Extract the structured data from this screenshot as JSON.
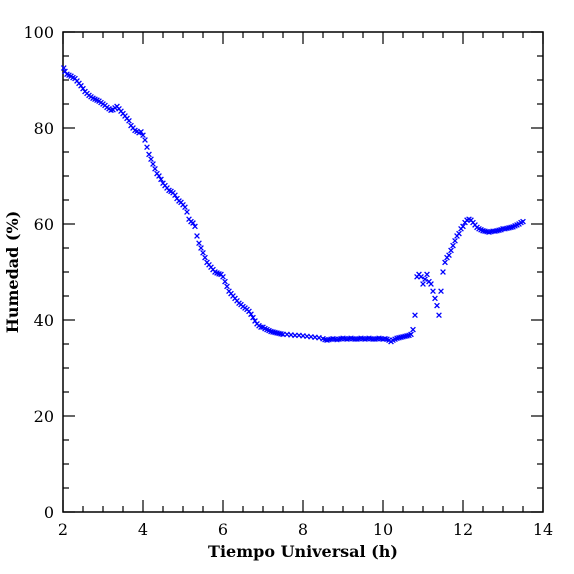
{
  "chart_data": {
    "type": "scatter",
    "title": "",
    "xlabel": "Tiempo Universal (h)",
    "ylabel": "Humedad (%)",
    "xlim": [
      2,
      14
    ],
    "ylim": [
      0,
      100
    ],
    "x_ticks": [
      "2",
      "4",
      "6",
      "8",
      "10",
      "12",
      "14"
    ],
    "y_ticks": [
      "0",
      "20",
      "40",
      "60",
      "80",
      "100"
    ],
    "grid": false,
    "marker": "x",
    "marker_color": "#0000ff",
    "series": [
      {
        "points": [
          [
            2.02,
            92.5
          ],
          [
            2.05,
            91.8
          ],
          [
            2.1,
            91.2
          ],
          [
            2.15,
            91.0
          ],
          [
            2.2,
            90.8
          ],
          [
            2.25,
            90.5
          ],
          [
            2.3,
            90.3
          ],
          [
            2.35,
            89.8
          ],
          [
            2.4,
            89.3
          ],
          [
            2.45,
            88.8
          ],
          [
            2.5,
            88.2
          ],
          [
            2.55,
            87.6
          ],
          [
            2.6,
            87.2
          ],
          [
            2.65,
            86.8
          ],
          [
            2.7,
            86.5
          ],
          [
            2.75,
            86.2
          ],
          [
            2.8,
            86.0
          ],
          [
            2.85,
            85.8
          ],
          [
            2.9,
            85.6
          ],
          [
            2.95,
            85.3
          ],
          [
            3.0,
            85.0
          ],
          [
            3.05,
            84.7
          ],
          [
            3.1,
            84.3
          ],
          [
            3.15,
            84.0
          ],
          [
            3.2,
            83.7
          ],
          [
            3.25,
            83.8
          ],
          [
            3.3,
            84.2
          ],
          [
            3.35,
            84.5
          ],
          [
            3.4,
            84.0
          ],
          [
            3.45,
            83.5
          ],
          [
            3.5,
            83.0
          ],
          [
            3.55,
            82.5
          ],
          [
            3.6,
            82.0
          ],
          [
            3.65,
            81.5
          ],
          [
            3.7,
            80.5
          ],
          [
            3.75,
            80.0
          ],
          [
            3.8,
            79.5
          ],
          [
            3.85,
            79.3
          ],
          [
            3.9,
            79.0
          ],
          [
            3.95,
            79.2
          ],
          [
            4.0,
            78.5
          ],
          [
            4.05,
            77.5
          ],
          [
            4.1,
            76.0
          ],
          [
            4.15,
            74.5
          ],
          [
            4.2,
            73.5
          ],
          [
            4.25,
            72.5
          ],
          [
            4.3,
            71.5
          ],
          [
            4.35,
            70.5
          ],
          [
            4.4,
            70.0
          ],
          [
            4.45,
            69.3
          ],
          [
            4.5,
            68.5
          ],
          [
            4.55,
            68.0
          ],
          [
            4.6,
            67.5
          ],
          [
            4.65,
            67.0
          ],
          [
            4.7,
            66.8
          ],
          [
            4.75,
            66.5
          ],
          [
            4.8,
            66.0
          ],
          [
            4.85,
            65.3
          ],
          [
            4.9,
            64.8
          ],
          [
            4.95,
            64.5
          ],
          [
            5.0,
            64.0
          ],
          [
            5.05,
            63.5
          ],
          [
            5.1,
            62.5
          ],
          [
            5.15,
            61.0
          ],
          [
            5.2,
            60.5
          ],
          [
            5.25,
            60.2
          ],
          [
            5.3,
            59.5
          ],
          [
            5.35,
            57.5
          ],
          [
            5.4,
            56.0
          ],
          [
            5.45,
            55.0
          ],
          [
            5.5,
            54.0
          ],
          [
            5.55,
            53.0
          ],
          [
            5.6,
            52.0
          ],
          [
            5.65,
            51.5
          ],
          [
            5.7,
            51.0
          ],
          [
            5.75,
            50.5
          ],
          [
            5.8,
            50.0
          ],
          [
            5.85,
            49.8
          ],
          [
            5.9,
            49.6
          ],
          [
            5.95,
            49.5
          ],
          [
            6.0,
            49.0
          ],
          [
            6.05,
            48.0
          ],
          [
            6.1,
            47.0
          ],
          [
            6.15,
            46.0
          ],
          [
            6.2,
            45.5
          ],
          [
            6.25,
            45.0
          ],
          [
            6.3,
            44.5
          ],
          [
            6.35,
            44.0
          ],
          [
            6.4,
            43.5
          ],
          [
            6.45,
            43.2
          ],
          [
            6.5,
            42.8
          ],
          [
            6.55,
            42.5
          ],
          [
            6.6,
            42.2
          ],
          [
            6.65,
            41.8
          ],
          [
            6.7,
            41.2
          ],
          [
            6.75,
            40.5
          ],
          [
            6.8,
            39.8
          ],
          [
            6.85,
            39.2
          ],
          [
            6.9,
            38.8
          ],
          [
            6.95,
            38.5
          ],
          [
            7.0,
            38.5
          ],
          [
            7.05,
            38.2
          ],
          [
            7.1,
            38.0
          ],
          [
            7.15,
            37.8
          ],
          [
            7.2,
            37.6
          ],
          [
            7.25,
            37.5
          ],
          [
            7.3,
            37.4
          ],
          [
            7.35,
            37.3
          ],
          [
            7.4,
            37.2
          ],
          [
            7.45,
            37.1
          ],
          [
            7.5,
            37.0
          ],
          [
            7.6,
            37.0
          ],
          [
            7.7,
            36.9
          ],
          [
            7.8,
            36.8
          ],
          [
            7.9,
            36.8
          ],
          [
            8.0,
            36.7
          ],
          [
            8.1,
            36.6
          ],
          [
            8.2,
            36.5
          ],
          [
            8.3,
            36.4
          ],
          [
            8.4,
            36.3
          ],
          [
            8.5,
            36.1
          ],
          [
            8.55,
            35.9
          ],
          [
            8.6,
            35.8
          ],
          [
            8.65,
            35.9
          ],
          [
            8.7,
            36.0
          ],
          [
            8.75,
            36.1
          ],
          [
            8.8,
            36.0
          ],
          [
            8.85,
            35.9
          ],
          [
            8.9,
            36.0
          ],
          [
            8.95,
            36.1
          ],
          [
            9.0,
            36.2
          ],
          [
            9.05,
            36.1
          ],
          [
            9.1,
            36.0
          ],
          [
            9.15,
            36.1
          ],
          [
            9.2,
            36.2
          ],
          [
            9.25,
            36.1
          ],
          [
            9.3,
            36.0
          ],
          [
            9.35,
            36.0
          ],
          [
            9.4,
            36.1
          ],
          [
            9.45,
            36.2
          ],
          [
            9.5,
            36.1
          ],
          [
            9.55,
            36.0
          ],
          [
            9.6,
            36.1
          ],
          [
            9.65,
            36.2
          ],
          [
            9.7,
            36.1
          ],
          [
            9.75,
            36.0
          ],
          [
            9.8,
            36.0
          ],
          [
            9.85,
            36.1
          ],
          [
            9.9,
            36.2
          ],
          [
            9.95,
            36.1
          ],
          [
            10.0,
            36.0
          ],
          [
            10.05,
            36.1
          ],
          [
            10.1,
            36.0
          ],
          [
            10.15,
            35.8
          ],
          [
            10.2,
            35.5
          ],
          [
            10.25,
            35.8
          ],
          [
            10.3,
            36.0
          ],
          [
            10.35,
            36.2
          ],
          [
            10.4,
            36.3
          ],
          [
            10.45,
            36.4
          ],
          [
            10.5,
            36.5
          ],
          [
            10.55,
            36.6
          ],
          [
            10.6,
            36.7
          ],
          [
            10.65,
            36.8
          ],
          [
            10.7,
            37.0
          ],
          [
            10.75,
            38.0
          ],
          [
            10.8,
            41.0
          ],
          [
            10.85,
            49.0
          ],
          [
            10.9,
            49.5
          ],
          [
            10.95,
            49.0
          ],
          [
            11.0,
            47.5
          ],
          [
            11.05,
            48.5
          ],
          [
            11.1,
            49.5
          ],
          [
            11.15,
            48.0
          ],
          [
            11.2,
            47.5
          ],
          [
            11.25,
            46.0
          ],
          [
            11.3,
            44.5
          ],
          [
            11.35,
            43.0
          ],
          [
            11.4,
            41.0
          ],
          [
            11.45,
            46.0
          ],
          [
            11.5,
            50.0
          ],
          [
            11.55,
            52.0
          ],
          [
            11.6,
            53.0
          ],
          [
            11.65,
            53.5
          ],
          [
            11.7,
            54.5
          ],
          [
            11.75,
            55.5
          ],
          [
            11.8,
            56.5
          ],
          [
            11.85,
            57.5
          ],
          [
            11.9,
            58.0
          ],
          [
            11.95,
            59.0
          ],
          [
            12.0,
            59.5
          ],
          [
            12.05,
            60.3
          ],
          [
            12.1,
            60.8
          ],
          [
            12.15,
            61.0
          ],
          [
            12.2,
            60.8
          ],
          [
            12.25,
            60.3
          ],
          [
            12.3,
            59.8
          ],
          [
            12.35,
            59.3
          ],
          [
            12.4,
            59.0
          ],
          [
            12.45,
            58.8
          ],
          [
            12.5,
            58.6
          ],
          [
            12.55,
            58.5
          ],
          [
            12.6,
            58.4
          ],
          [
            12.65,
            58.3
          ],
          [
            12.7,
            58.4
          ],
          [
            12.75,
            58.5
          ],
          [
            12.8,
            58.5
          ],
          [
            12.85,
            58.6
          ],
          [
            12.9,
            58.7
          ],
          [
            12.95,
            58.8
          ],
          [
            13.0,
            59.0
          ],
          [
            13.05,
            59.0
          ],
          [
            13.1,
            59.1
          ],
          [
            13.15,
            59.2
          ],
          [
            13.2,
            59.3
          ],
          [
            13.25,
            59.4
          ],
          [
            13.3,
            59.6
          ],
          [
            13.35,
            59.8
          ],
          [
            13.4,
            60.0
          ],
          [
            13.45,
            60.3
          ],
          [
            13.5,
            60.5
          ]
        ]
      }
    ]
  }
}
